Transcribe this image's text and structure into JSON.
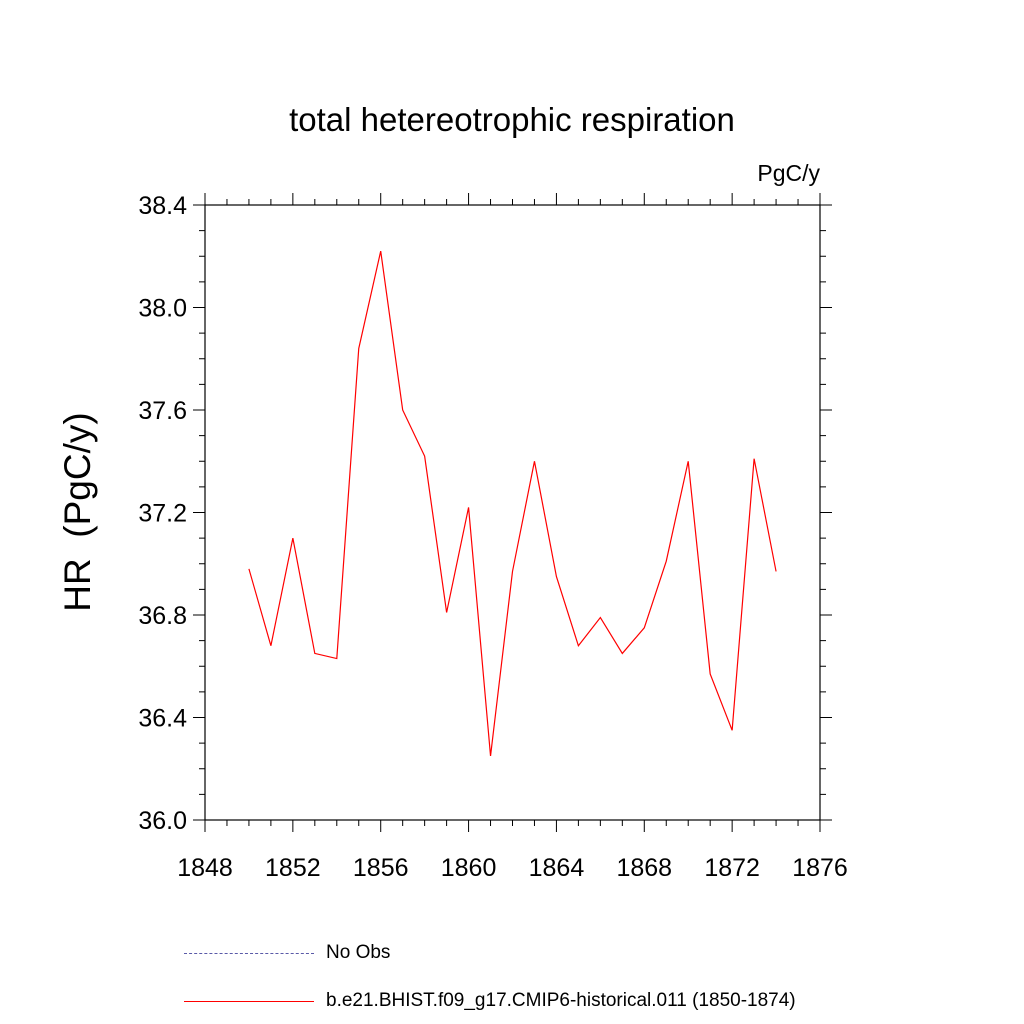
{
  "chart_data": {
    "type": "line",
    "title": "total hetereotrophic respiration",
    "units_label": "PgC/y",
    "ylabel": "HR  (PgC/y)",
    "xlabel": "",
    "xlim": [
      1848,
      1876
    ],
    "ylim": [
      36.0,
      38.4
    ],
    "x_ticks": [
      1848,
      1852,
      1856,
      1860,
      1864,
      1868,
      1872,
      1876
    ],
    "y_ticks": [
      "36.0",
      "36.4",
      "36.8",
      "37.2",
      "37.6",
      "38.0",
      "38.4"
    ],
    "series": [
      {
        "name": "b.e21.BHIST.f09_g17.CMIP6-historical.011 (1850-1874)",
        "color": "#ff0000",
        "x": [
          1850,
          1851,
          1852,
          1853,
          1854,
          1855,
          1856,
          1857,
          1858,
          1859,
          1860,
          1861,
          1862,
          1863,
          1864,
          1865,
          1866,
          1867,
          1868,
          1869,
          1870,
          1871,
          1872,
          1873,
          1874
        ],
        "y": [
          36.98,
          36.68,
          37.1,
          36.65,
          36.63,
          37.84,
          38.22,
          37.6,
          37.42,
          36.81,
          37.22,
          36.25,
          36.97,
          37.4,
          36.95,
          36.68,
          36.79,
          36.65,
          36.75,
          37.01,
          37.4,
          36.57,
          36.35,
          37.41,
          36.97
        ]
      }
    ],
    "grid": false
  },
  "legend": {
    "items": [
      {
        "label": "No Obs",
        "color": "#5a5aa8",
        "style": "dashed"
      },
      {
        "label": "b.e21.BHIST.f09_g17.CMIP6-historical.011 (1850-1874)",
        "color": "#ff0000",
        "style": "solid"
      }
    ]
  }
}
